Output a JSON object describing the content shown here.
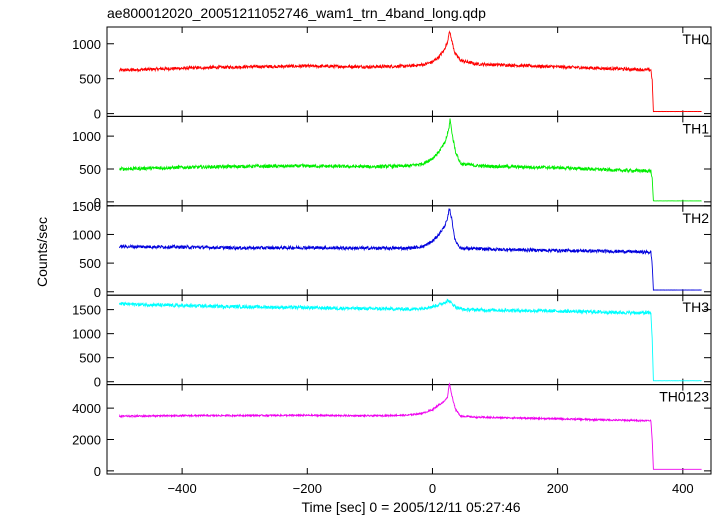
{
  "chart_data": {
    "type": "line",
    "title": "ae800012020_20051211052746_wam1_trn_4band_long.qdp",
    "xlabel": "Time [sec] 0 = 2005/12/11 05:27:46",
    "ylabel": "Counts/sec",
    "xlim": [
      -520,
      445
    ],
    "xticks": [
      -400,
      -200,
      0,
      200,
      400
    ],
    "xtick_labels": [
      "−400",
      "−200",
      "0",
      "200",
      "400"
    ],
    "data_range": [
      -500,
      430
    ],
    "grid": false,
    "panels": [
      {
        "name": "TH0",
        "color": "#ff0000",
        "ylim": [
          -40,
          1240
        ],
        "yticks": [
          0,
          500,
          1000
        ],
        "ytick_labels": [
          "0",
          "500",
          "1000"
        ],
        "noise": 22,
        "points": [
          [
            -500,
            620
          ],
          [
            -400,
            650
          ],
          [
            -300,
            670
          ],
          [
            -200,
            680
          ],
          [
            -100,
            670
          ],
          [
            -40,
            680
          ],
          [
            -15,
            700
          ],
          [
            0,
            740
          ],
          [
            10,
            810
          ],
          [
            18,
            900
          ],
          [
            24,
            1020
          ],
          [
            27,
            1190
          ],
          [
            31,
            1040
          ],
          [
            36,
            860
          ],
          [
            45,
            760
          ],
          [
            70,
            710
          ],
          [
            100,
            700
          ],
          [
            200,
            670
          ],
          [
            300,
            640
          ],
          [
            349,
            625
          ],
          [
            351,
            480
          ],
          [
            353,
            30
          ],
          [
            430,
            30
          ]
        ]
      },
      {
        "name": "TH1",
        "color": "#00ee00",
        "ylim": [
          -60,
          1300
        ],
        "yticks": [
          0,
          500,
          1000
        ],
        "ytick_labels": [
          "0",
          "500",
          "1000"
        ],
        "noise": 25,
        "points": [
          [
            -500,
            500
          ],
          [
            -400,
            525
          ],
          [
            -300,
            540
          ],
          [
            -200,
            545
          ],
          [
            -100,
            535
          ],
          [
            -40,
            545
          ],
          [
            -15,
            580
          ],
          [
            0,
            660
          ],
          [
            10,
            760
          ],
          [
            20,
            900
          ],
          [
            26,
            1100
          ],
          [
            28,
            1260
          ],
          [
            32,
            1000
          ],
          [
            37,
            760
          ],
          [
            45,
            580
          ],
          [
            70,
            550
          ],
          [
            100,
            540
          ],
          [
            200,
            520
          ],
          [
            300,
            480
          ],
          [
            349,
            470
          ],
          [
            351,
            350
          ],
          [
            353,
            15
          ],
          [
            430,
            15
          ]
        ]
      },
      {
        "name": "TH2",
        "color": "#0000dd",
        "ylim": [
          -60,
          1500
        ],
        "yticks": [
          0,
          500,
          1000,
          1500
        ],
        "ytick_labels": [
          "0",
          "500",
          "1000",
          "1500"
        ],
        "noise": 28,
        "points": [
          [
            -500,
            790
          ],
          [
            -400,
            780
          ],
          [
            -300,
            765
          ],
          [
            -200,
            770
          ],
          [
            -100,
            760
          ],
          [
            -40,
            760
          ],
          [
            -15,
            790
          ],
          [
            0,
            880
          ],
          [
            10,
            1000
          ],
          [
            18,
            1120
          ],
          [
            24,
            1260
          ],
          [
            27,
            1460
          ],
          [
            31,
            1260
          ],
          [
            36,
            900
          ],
          [
            45,
            760
          ],
          [
            70,
            750
          ],
          [
            100,
            740
          ],
          [
            200,
            720
          ],
          [
            300,
            705
          ],
          [
            349,
            690
          ],
          [
            351,
            480
          ],
          [
            353,
            30
          ],
          [
            430,
            30
          ]
        ]
      },
      {
        "name": "TH3",
        "color": "#00ffff",
        "ylim": [
          -60,
          1800
        ],
        "yticks": [
          0,
          500,
          1000,
          1500
        ],
        "ytick_labels": [
          "0",
          "500",
          "1000",
          "1500"
        ],
        "noise": 35,
        "points": [
          [
            -500,
            1620
          ],
          [
            -400,
            1580
          ],
          [
            -300,
            1560
          ],
          [
            -200,
            1540
          ],
          [
            -100,
            1520
          ],
          [
            -30,
            1510
          ],
          [
            0,
            1560
          ],
          [
            15,
            1620
          ],
          [
            25,
            1690
          ],
          [
            30,
            1640
          ],
          [
            38,
            1550
          ],
          [
            50,
            1500
          ],
          [
            100,
            1490
          ],
          [
            200,
            1470
          ],
          [
            300,
            1440
          ],
          [
            349,
            1430
          ],
          [
            351,
            900
          ],
          [
            353,
            20
          ],
          [
            430,
            20
          ]
        ]
      },
      {
        "name": "TH0123",
        "color": "#ee00ee",
        "ylim": [
          -200,
          5500
        ],
        "yticks": [
          0,
          2000,
          4000
        ],
        "ytick_labels": [
          "0",
          "2000",
          "4000"
        ],
        "noise": 50,
        "points": [
          [
            -500,
            3480
          ],
          [
            -400,
            3520
          ],
          [
            -300,
            3530
          ],
          [
            -200,
            3540
          ],
          [
            -100,
            3510
          ],
          [
            -40,
            3550
          ],
          [
            -15,
            3680
          ],
          [
            0,
            3900
          ],
          [
            10,
            4200
          ],
          [
            18,
            4400
          ],
          [
            24,
            4700
          ],
          [
            27,
            5600
          ],
          [
            31,
            4800
          ],
          [
            37,
            3900
          ],
          [
            45,
            3500
          ],
          [
            70,
            3420
          ],
          [
            100,
            3400
          ],
          [
            200,
            3320
          ],
          [
            300,
            3230
          ],
          [
            349,
            3200
          ],
          [
            351,
            2000
          ],
          [
            353,
            100
          ],
          [
            430,
            100
          ]
        ]
      }
    ]
  }
}
